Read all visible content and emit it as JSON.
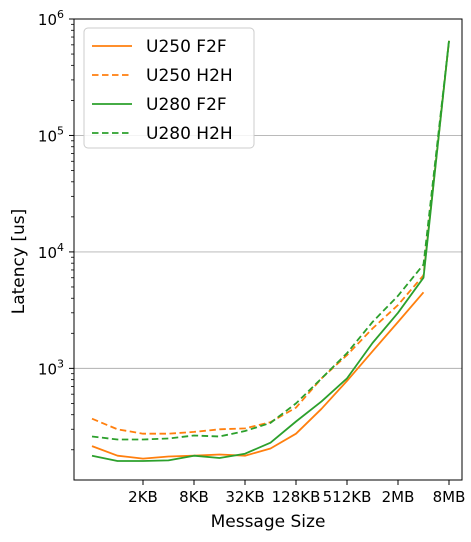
{
  "chart_data": {
    "type": "line",
    "xlabel": "Message Size",
    "ylabel": "Latency [us]",
    "yscale": "log",
    "ylim": [
      110,
      1000000
    ],
    "xlim": [
      0,
      15
    ],
    "grid": "horizontal at major y ticks",
    "legend_position": "top-left",
    "x_tick_labels": [
      "2KB",
      "8KB",
      "32KB",
      "128KB",
      "512KB",
      "2MB",
      "8MB"
    ],
    "x_tick_positions": [
      2,
      4,
      6,
      8,
      10,
      12,
      14
    ],
    "y_tick_labels": [
      {
        "base": "10",
        "exp": "3"
      },
      {
        "base": "10",
        "exp": "4"
      },
      {
        "base": "10",
        "exp": "5"
      },
      {
        "base": "10",
        "exp": "6"
      }
    ],
    "y_tick_values": [
      1000,
      10000,
      100000,
      1000000
    ],
    "series": [
      {
        "name": "U250 F2F",
        "color": "#ff7f0e",
        "dash": "solid",
        "x": [
          0,
          1,
          2,
          3,
          4,
          5,
          6,
          7,
          8,
          9,
          10,
          11,
          12,
          13,
          14
        ],
        "y": [
          215,
          178,
          168,
          175,
          178,
          182,
          178,
          205,
          275,
          450,
          780,
          1400,
          2500,
          4500,
          null
        ]
      },
      {
        "name": "U250 H2H",
        "color": "#ff7f0e",
        "dash": "dashed",
        "x": [
          0,
          1,
          2,
          3,
          4,
          5,
          6,
          7,
          8,
          9,
          10,
          11,
          12,
          13,
          14
        ],
        "y": [
          370,
          300,
          275,
          275,
          285,
          300,
          305,
          345,
          460,
          820,
          1300,
          2200,
          3500,
          6300,
          650000
        ]
      },
      {
        "name": "U280 F2F",
        "color": "#2ca02c",
        "dash": "solid",
        "x": [
          0,
          1,
          2,
          3,
          4,
          5,
          6,
          7,
          8,
          9,
          10,
          11,
          12,
          13,
          14
        ],
        "y": [
          178,
          160,
          160,
          162,
          178,
          170,
          185,
          230,
          350,
          520,
          820,
          1650,
          3000,
          6000,
          650000
        ]
      },
      {
        "name": "U280 H2H",
        "color": "#2ca02c",
        "dash": "dashed",
        "x": [
          0,
          1,
          2,
          3,
          4,
          5,
          6,
          7,
          8,
          9,
          10,
          11,
          12,
          13,
          14
        ],
        "y": [
          260,
          245,
          245,
          250,
          265,
          260,
          290,
          340,
          500,
          820,
          1350,
          2500,
          4200,
          7800,
          650000
        ]
      }
    ]
  }
}
